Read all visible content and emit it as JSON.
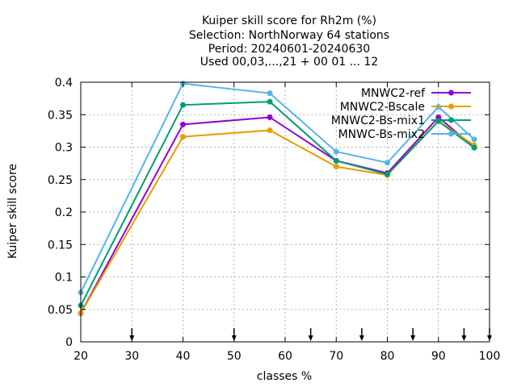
{
  "chart_data": {
    "type": "line",
    "title_lines": [
      "Kuiper skill score  for Rh2m (%)",
      "Selection: NorthNorway     64 stations",
      "Period: 20240601-20240630",
      "Used 00,03,...,21 + 00 01 ... 12"
    ],
    "xlabel": "classes %",
    "ylabel": "Kuiper skill score",
    "xlim": [
      20,
      100
    ],
    "ylim": [
      0,
      0.4
    ],
    "xticks": [
      20,
      30,
      40,
      50,
      60,
      70,
      80,
      90,
      100
    ],
    "yticks": [
      0,
      0.05,
      0.1,
      0.15,
      0.2,
      0.25,
      0.3,
      0.35,
      0.4
    ],
    "xtick_labels": [
      "20",
      "30",
      "40",
      "50",
      "60",
      "70",
      "80",
      "90",
      "100"
    ],
    "ytick_labels": [
      "0",
      "0.05",
      "0.1",
      "0.15",
      "0.2",
      "0.25",
      "0.3",
      "0.35",
      "0.4"
    ],
    "grid": true,
    "legend_position": "top-right",
    "threshold_arrows_x": [
      30,
      50,
      65,
      75,
      85,
      95,
      100
    ],
    "x": [
      20,
      40,
      57,
      70,
      80,
      90,
      97
    ],
    "series": [
      {
        "name": "MNWC2-ref",
        "color": "#9400d3",
        "values": [
          0.044,
          0.335,
          0.346,
          0.279,
          0.26,
          0.346,
          0.3
        ]
      },
      {
        "name": "MNWC2-Bscale",
        "color": "#e69f00",
        "values": [
          0.044,
          0.316,
          0.326,
          0.27,
          0.257,
          0.34,
          0.303
        ]
      },
      {
        "name": "MNWC2-Bs-mix1",
        "color": "#009e73",
        "values": [
          0.056,
          0.365,
          0.37,
          0.279,
          0.258,
          0.34,
          0.299
        ]
      },
      {
        "name": "MNWC-Bs-mix2",
        "color": "#56b4e9",
        "values": [
          0.076,
          0.398,
          0.383,
          0.293,
          0.276,
          0.362,
          0.312
        ]
      }
    ]
  }
}
